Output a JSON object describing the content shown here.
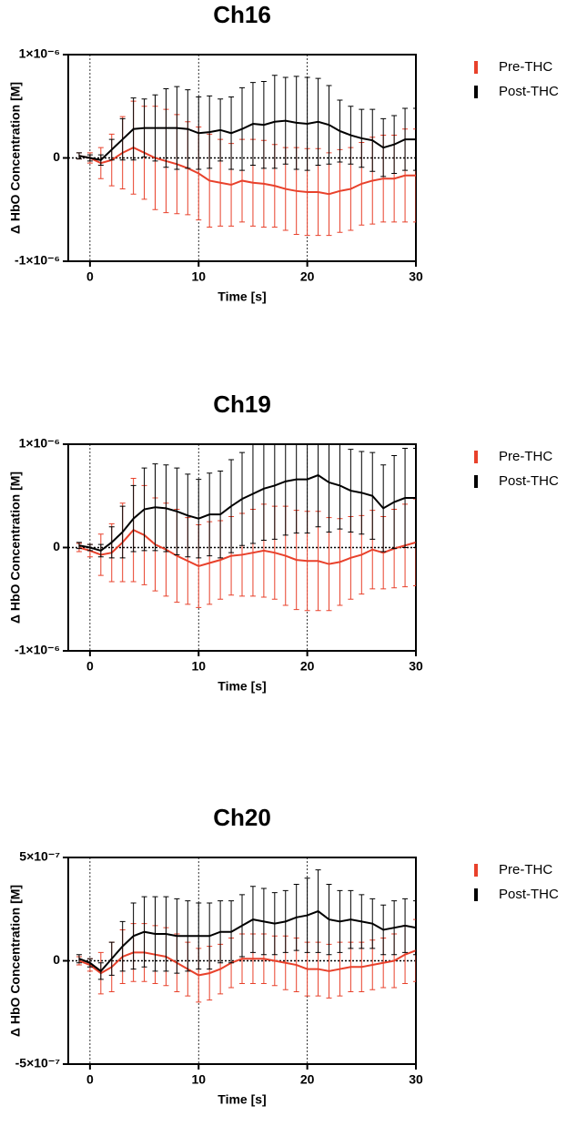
{
  "chart_data": [
    {
      "type": "line",
      "title": "Ch16",
      "xlabel": "Time [s]",
      "ylabel": "Δ HbO Concentration [M]",
      "x": [
        -1,
        0,
        1,
        2,
        3,
        4,
        5,
        6,
        7,
        8,
        9,
        10,
        11,
        12,
        13,
        14,
        15,
        16,
        17,
        18,
        19,
        20,
        21,
        22,
        23,
        24,
        25,
        26,
        27,
        28,
        29,
        30
      ],
      "xlim": [
        -2,
        30
      ],
      "xticks": [
        0,
        10,
        20,
        30
      ],
      "ylim": [
        -1e-06,
        1e-06
      ],
      "yticks": [
        {
          "value": -1e-06,
          "label": "-1×10⁻⁶"
        },
        0,
        {
          "value": 1e-06,
          "label": "1×10⁻⁶"
        }
      ],
      "vlines": [
        0,
        10,
        20
      ],
      "hline": 0,
      "series": [
        {
          "name": "Pre-THC",
          "color": "#e8412b",
          "values": [
            2e-08,
            0,
            -5e-08,
            -2e-08,
            5e-08,
            1e-07,
            5e-08,
            0,
            -3e-08,
            -6e-08,
            -1e-07,
            -1.5e-07,
            -2.2e-07,
            -2.4e-07,
            -2.6e-07,
            -2.2e-07,
            -2.4e-07,
            -2.5e-07,
            -2.7e-07,
            -3e-07,
            -3.2e-07,
            -3.3e-07,
            -3.3e-07,
            -3.5e-07,
            -3.2e-07,
            -3e-07,
            -2.5e-07,
            -2.2e-07,
            -2e-07,
            -2e-07,
            -1.7e-07,
            -1.7e-07
          ],
          "errors": [
            3e-08,
            5e-08,
            1.5e-07,
            2.5e-07,
            3.5e-07,
            4.5e-07,
            4.5e-07,
            5e-07,
            5e-07,
            4.8e-07,
            4.5e-07,
            4.5e-07,
            4.5e-07,
            4.2e-07,
            4e-07,
            4e-07,
            4.2e-07,
            4.2e-07,
            4e-07,
            4e-07,
            4.2e-07,
            4.2e-07,
            4.2e-07,
            4e-07,
            4e-07,
            4e-07,
            4e-07,
            4.2e-07,
            4.2e-07,
            4.2e-07,
            4.5e-07,
            4.5e-07
          ]
        },
        {
          "name": "Post-THC",
          "color": "#000000",
          "values": [
            2e-08,
            0,
            -2e-08,
            8e-08,
            1.8e-07,
            2.8e-07,
            2.9e-07,
            2.9e-07,
            2.9e-07,
            2.9e-07,
            2.8e-07,
            2.4e-07,
            2.5e-07,
            2.7e-07,
            2.4e-07,
            2.8e-07,
            3.3e-07,
            3.2e-07,
            3.5e-07,
            3.6e-07,
            3.4e-07,
            3.3e-07,
            3.5e-07,
            3.2e-07,
            2.6e-07,
            2.2e-07,
            1.9e-07,
            1.7e-07,
            1e-07,
            1.3e-07,
            1.8e-07,
            1.8e-07
          ],
          "errors": [
            3e-08,
            3e-08,
            5e-08,
            1e-07,
            2e-07,
            3e-07,
            2.8e-07,
            3.2e-07,
            3.8e-07,
            4e-07,
            3.8e-07,
            3.5e-07,
            3.5e-07,
            3e-07,
            3.5e-07,
            4e-07,
            4e-07,
            4.2e-07,
            4.5e-07,
            4.2e-07,
            4.5e-07,
            4.5e-07,
            4.2e-07,
            3.8e-07,
            3e-07,
            2.8e-07,
            2.8e-07,
            3e-07,
            2.8e-07,
            2.8e-07,
            3e-07,
            3e-07
          ]
        }
      ]
    },
    {
      "type": "line",
      "title": "Ch19",
      "xlabel": "Time [s]",
      "ylabel": "Δ HbO Concentration [M]",
      "x": [
        -1,
        0,
        1,
        2,
        3,
        4,
        5,
        6,
        7,
        8,
        9,
        10,
        11,
        12,
        13,
        14,
        15,
        16,
        17,
        18,
        19,
        20,
        21,
        22,
        23,
        24,
        25,
        26,
        27,
        28,
        29,
        30
      ],
      "xlim": [
        -2,
        30
      ],
      "xticks": [
        0,
        10,
        20,
        30
      ],
      "ylim": [
        -1e-06,
        1e-06
      ],
      "yticks": [
        {
          "value": -1e-06,
          "label": "-1×10⁻⁶"
        },
        0,
        {
          "value": 1e-06,
          "label": "1×10⁻⁶"
        }
      ],
      "vlines": [
        0,
        10,
        20
      ],
      "hline": 0,
      "series": [
        {
          "name": "Pre-THC",
          "color": "#e8412b",
          "values": [
            0,
            -3e-08,
            -7e-08,
            -5e-08,
            5e-08,
            1.7e-07,
            1.2e-07,
            3e-08,
            -2e-08,
            -8e-08,
            -1.3e-07,
            -1.8e-07,
            -1.5e-07,
            -1.2e-07,
            -8e-08,
            -7e-08,
            -5e-08,
            -3e-08,
            -5e-08,
            -8e-08,
            -1.2e-07,
            -1.3e-07,
            -1.3e-07,
            -1.6e-07,
            -1.4e-07,
            -1e-07,
            -7e-08,
            -2e-08,
            -5e-08,
            -1e-08,
            2e-08,
            5e-08
          ],
          "errors": [
            4e-08,
            6e-08,
            2e-07,
            2.8e-07,
            3.8e-07,
            5e-07,
            4.8e-07,
            4.5e-07,
            4.5e-07,
            4.5e-07,
            4.2e-07,
            4e-07,
            4e-07,
            3.8e-07,
            3.8e-07,
            4e-07,
            4.2e-07,
            4.5e-07,
            4.5e-07,
            4.8e-07,
            4.8e-07,
            4.8e-07,
            4.8e-07,
            4.5e-07,
            4.2e-07,
            4e-07,
            3.8e-07,
            3.8e-07,
            3.5e-07,
            3.8e-07,
            4e-07,
            4.2e-07
          ]
        },
        {
          "name": "Post-THC",
          "color": "#000000",
          "values": [
            2e-08,
            0,
            -3e-08,
            5e-08,
            1.5e-07,
            2.8e-07,
            3.7e-07,
            3.9e-07,
            3.8e-07,
            3.5e-07,
            3.1e-07,
            2.8e-07,
            3.2e-07,
            3.2e-07,
            4e-07,
            4.7e-07,
            5.2e-07,
            5.7e-07,
            6e-07,
            6.4e-07,
            6.6e-07,
            6.6e-07,
            7e-07,
            6.3e-07,
            6e-07,
            5.5e-07,
            5.3e-07,
            5e-07,
            3.8e-07,
            4.4e-07,
            4.8e-07,
            4.8e-07
          ],
          "errors": [
            3e-08,
            3e-08,
            6e-08,
            1.5e-07,
            2.5e-07,
            3.2e-07,
            4e-07,
            4.2e-07,
            4.2e-07,
            4.2e-07,
            4e-07,
            3.8e-07,
            4e-07,
            4.2e-07,
            4.5e-07,
            4.5e-07,
            4.8e-07,
            5e-07,
            5.2e-07,
            5.2e-07,
            5.2e-07,
            5.2e-07,
            5e-07,
            4.8e-07,
            4.2e-07,
            4e-07,
            4e-07,
            4.2e-07,
            4.2e-07,
            4.5e-07,
            4.8e-07,
            4.8e-07
          ]
        }
      ]
    },
    {
      "type": "line",
      "title": "Ch20",
      "xlabel": "Time [s]",
      "ylabel": "Δ HbO Concentration [M]",
      "x": [
        -1,
        0,
        1,
        2,
        3,
        4,
        5,
        6,
        7,
        8,
        9,
        10,
        11,
        12,
        13,
        14,
        15,
        16,
        17,
        18,
        19,
        20,
        21,
        22,
        23,
        24,
        25,
        26,
        27,
        28,
        29,
        30
      ],
      "xlim": [
        -2,
        30
      ],
      "xticks": [
        0,
        10,
        20,
        30
      ],
      "ylim": [
        -5e-07,
        5e-07
      ],
      "yticks": [
        {
          "value": -5e-07,
          "label": "-5×10⁻⁷"
        },
        0,
        {
          "value": 5e-07,
          "label": "5×10⁻⁷"
        }
      ],
      "vlines": [
        0,
        10,
        20
      ],
      "hline": 0,
      "series": [
        {
          "name": "Pre-THC",
          "color": "#e8412b",
          "values": [
            0,
            -2e-08,
            -6e-08,
            -3e-08,
            2e-08,
            4e-08,
            4e-08,
            3e-08,
            2e-08,
            -1e-08,
            -4e-08,
            -7e-08,
            -6e-08,
            -4e-08,
            -1e-08,
            1e-08,
            1e-08,
            1e-08,
            0,
            -1e-08,
            -2e-08,
            -4e-08,
            -4e-08,
            -5e-08,
            -4e-08,
            -3e-08,
            -3e-08,
            -2e-08,
            -1e-08,
            0,
            3e-08,
            5e-08
          ],
          "errors": [
            2e-08,
            3e-08,
            1e-07,
            1.2e-07,
            1.3e-07,
            1.4e-07,
            1.4e-07,
            1.4e-07,
            1.4e-07,
            1.4e-07,
            1.3e-07,
            1.3e-07,
            1.3e-07,
            1.2e-07,
            1.2e-07,
            1.2e-07,
            1.2e-07,
            1.2e-07,
            1.2e-07,
            1.3e-07,
            1.3e-07,
            1.3e-07,
            1.3e-07,
            1.3e-07,
            1.3e-07,
            1.2e-07,
            1.2e-07,
            1.2e-07,
            1.2e-07,
            1.3e-07,
            1.4e-07,
            1.5e-07
          ]
        },
        {
          "name": "Post-THC",
          "color": "#000000",
          "values": [
            1e-08,
            -1e-08,
            -5e-08,
            1e-08,
            7e-08,
            1.2e-07,
            1.4e-07,
            1.3e-07,
            1.3e-07,
            1.2e-07,
            1.2e-07,
            1.2e-07,
            1.2e-07,
            1.4e-07,
            1.4e-07,
            1.7e-07,
            2e-07,
            1.9e-07,
            1.8e-07,
            1.9e-07,
            2.1e-07,
            2.2e-07,
            2.4e-07,
            2e-07,
            1.9e-07,
            2e-07,
            1.9e-07,
            1.8e-07,
            1.5e-07,
            1.6e-07,
            1.7e-07,
            1.6e-07
          ],
          "errors": [
            2e-08,
            2e-08,
            4e-08,
            8e-08,
            1.2e-07,
            1.6e-07,
            1.7e-07,
            1.8e-07,
            1.8e-07,
            1.8e-07,
            1.7e-07,
            1.6e-07,
            1.6e-07,
            1.5e-07,
            1.5e-07,
            1.5e-07,
            1.6e-07,
            1.6e-07,
            1.5e-07,
            1.5e-07,
            1.6e-07,
            1.8e-07,
            2e-07,
            1.7e-07,
            1.5e-07,
            1.4e-07,
            1.3e-07,
            1.2e-07,
            1.2e-07,
            1.3e-07,
            1.3e-07,
            1.3e-07
          ]
        }
      ]
    }
  ]
}
